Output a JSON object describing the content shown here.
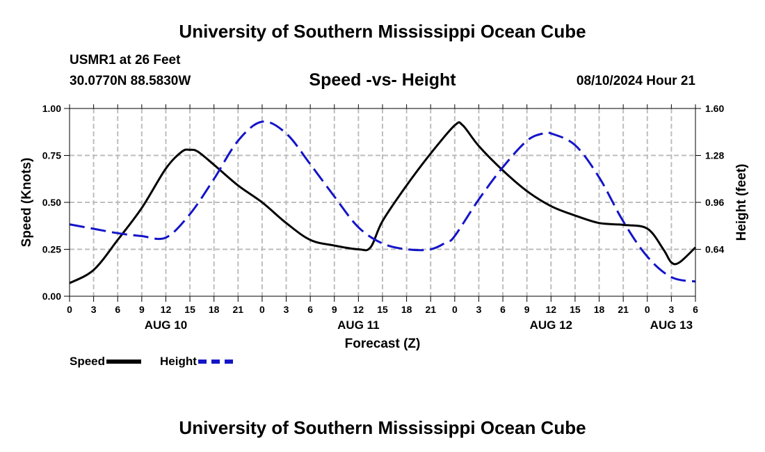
{
  "page": {
    "top_title": "University of Southern Mississippi Ocean Cube",
    "bottom_title": "University of Southern Mississippi Ocean Cube",
    "station_name": "USMR1 at 26 Feet",
    "station_coords": "30.0770N  88.5830W",
    "run_time": "08/10/2024 Hour 21"
  },
  "colors": {
    "speed": "#000000",
    "height": "#1414c8",
    "grid": "#bdbdbd"
  },
  "legend": {
    "speed_label": "Speed",
    "height_label": "Height"
  },
  "chart_data": {
    "type": "line",
    "title": "Speed -vs- Height",
    "xlabel": "Forecast (Z)",
    "ylabel_left": "Speed (Knots)",
    "ylabel_right": "Height (feet)",
    "x_unit": "forecast hour from 08/10 00Z",
    "xlim": [
      0,
      78
    ],
    "x_ticks": [
      0,
      3,
      6,
      9,
      12,
      15,
      18,
      21,
      24,
      27,
      30,
      33,
      36,
      39,
      42,
      45,
      48,
      51,
      54,
      57,
      60,
      63,
      66,
      69,
      72,
      75,
      78
    ],
    "x_tick_labels": [
      "0",
      "3",
      "6",
      "9",
      "12",
      "15",
      "18",
      "21",
      "0",
      "3",
      "6",
      "9",
      "12",
      "15",
      "18",
      "21",
      "0",
      "3",
      "6",
      "9",
      "12",
      "15",
      "18",
      "21",
      "0",
      "3",
      "6"
    ],
    "date_labels": [
      {
        "x": 12,
        "label": "AUG 10"
      },
      {
        "x": 36,
        "label": "AUG 11"
      },
      {
        "x": 60,
        "label": "AUG 12"
      },
      {
        "x": 75,
        "label": "AUG 13"
      }
    ],
    "ylim_left": [
      0,
      1
    ],
    "y_ticks_left": [
      0,
      0.25,
      0.5,
      0.75,
      1
    ],
    "y_tick_labels_left": [
      "0.00",
      "0.25",
      "0.50",
      "0.75",
      "1.00"
    ],
    "ylim_right": [
      0.32,
      1.6
    ],
    "y_ticks_right": [
      0.64,
      0.96,
      1.28,
      1.6
    ],
    "y_tick_labels_right": [
      "0.64",
      "0.96",
      "1.28",
      "1.60"
    ],
    "grid": true,
    "series": [
      {
        "name": "Speed",
        "axis": "left",
        "style": "solid",
        "x": [
          0,
          3,
          6,
          9,
          12,
          14,
          15,
          16,
          18,
          21,
          24,
          27,
          30,
          33,
          36,
          37.5,
          39,
          42,
          45,
          48,
          49,
          51,
          54,
          57,
          60,
          63,
          66,
          69,
          72,
          74,
          75,
          76,
          78
        ],
        "y": [
          0.07,
          0.14,
          0.3,
          0.47,
          0.68,
          0.77,
          0.78,
          0.77,
          0.7,
          0.59,
          0.5,
          0.39,
          0.3,
          0.27,
          0.25,
          0.26,
          0.4,
          0.59,
          0.76,
          0.91,
          0.91,
          0.8,
          0.67,
          0.56,
          0.48,
          0.43,
          0.39,
          0.38,
          0.36,
          0.25,
          0.18,
          0.18,
          0.26
        ]
      },
      {
        "name": "Height",
        "axis": "right",
        "style": "dashed",
        "x": [
          0,
          3,
          6,
          9,
          12,
          15,
          18,
          21,
          24,
          27,
          30,
          33,
          36,
          39,
          42,
          45,
          47,
          48,
          51,
          54,
          57,
          59,
          60,
          63,
          66,
          69,
          72,
          75,
          78
        ],
        "y": [
          0.81,
          0.78,
          0.75,
          0.73,
          0.72,
          0.88,
          1.12,
          1.38,
          1.51,
          1.43,
          1.22,
          1.0,
          0.79,
          0.68,
          0.64,
          0.64,
          0.69,
          0.73,
          0.98,
          1.2,
          1.38,
          1.43,
          1.43,
          1.35,
          1.13,
          0.83,
          0.59,
          0.45,
          0.42
        ]
      }
    ]
  }
}
